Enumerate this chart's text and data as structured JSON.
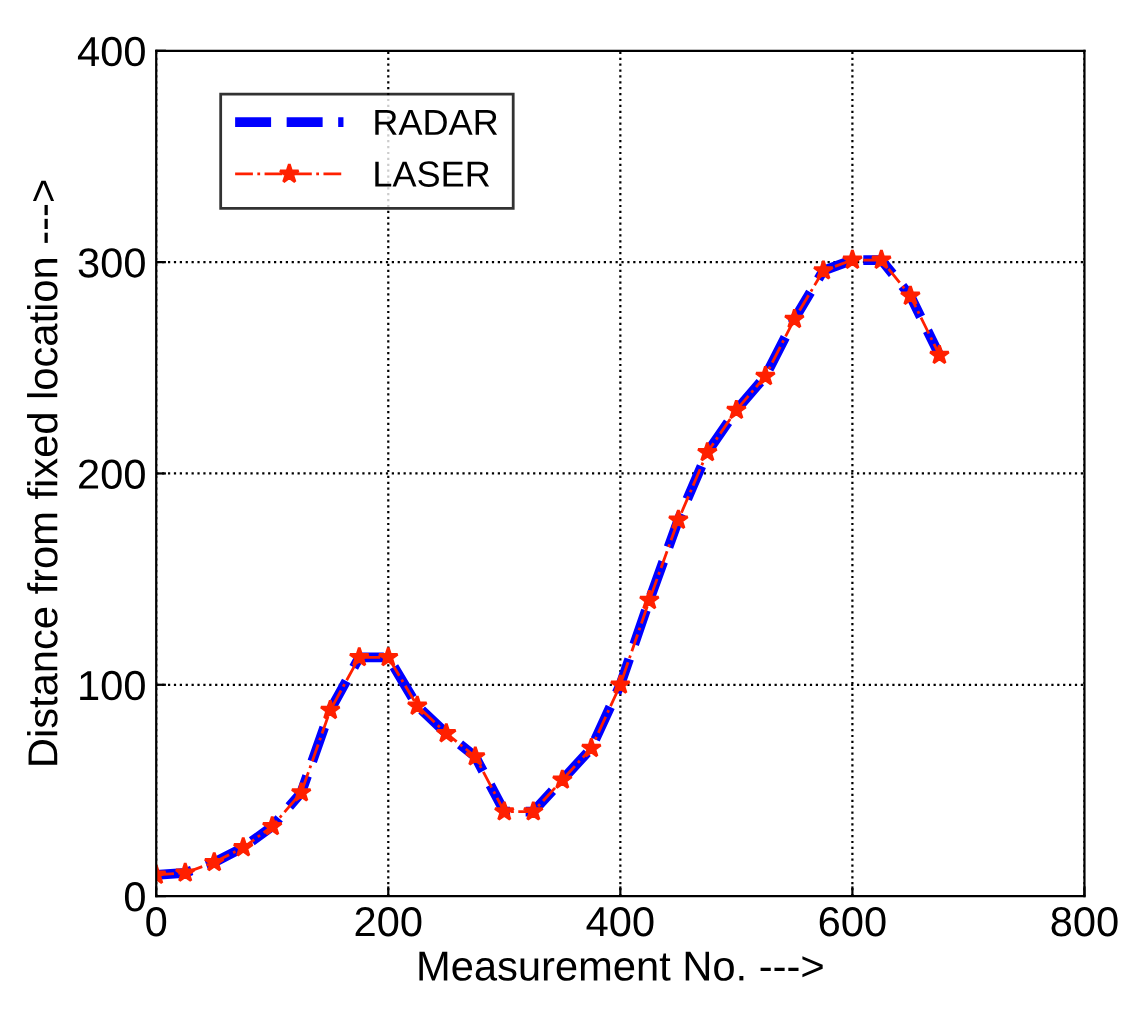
{
  "chart_data": {
    "type": "line",
    "xlabel": "Measurement No. --->",
    "ylabel": "Distance from fixed location --->",
    "x": [
      0,
      25,
      50,
      75,
      100,
      125,
      150,
      175,
      200,
      225,
      250,
      275,
      300,
      325,
      350,
      375,
      400,
      425,
      450,
      475,
      500,
      525,
      550,
      575,
      600,
      625,
      650,
      675
    ],
    "series": [
      {
        "name": "RADAR",
        "color": "#0000ff",
        "line_style": "dashed",
        "marker": "none",
        "values": [
          10,
          11,
          16,
          23,
          33,
          49,
          88,
          113,
          113,
          90,
          77,
          66,
          40,
          40,
          55,
          70,
          100,
          140,
          178,
          210,
          230,
          246,
          273,
          296,
          301,
          301,
          284,
          256
        ]
      },
      {
        "name": "LASER",
        "color": "#ff2000",
        "line_style": "dashdot",
        "marker": "star",
        "values": [
          10,
          11,
          16,
          23,
          33,
          49,
          88,
          113,
          113,
          90,
          77,
          66,
          40,
          40,
          55,
          70,
          100,
          140,
          178,
          210,
          230,
          246,
          273,
          296,
          301,
          301,
          284,
          256
        ]
      }
    ],
    "xlim": [
      0,
      800
    ],
    "xticks": [
      0,
      200,
      400,
      600,
      800
    ],
    "ylim": [
      0,
      400
    ],
    "yticks": [
      0,
      100,
      200,
      300,
      400
    ],
    "grid": true,
    "legend": "top left"
  }
}
